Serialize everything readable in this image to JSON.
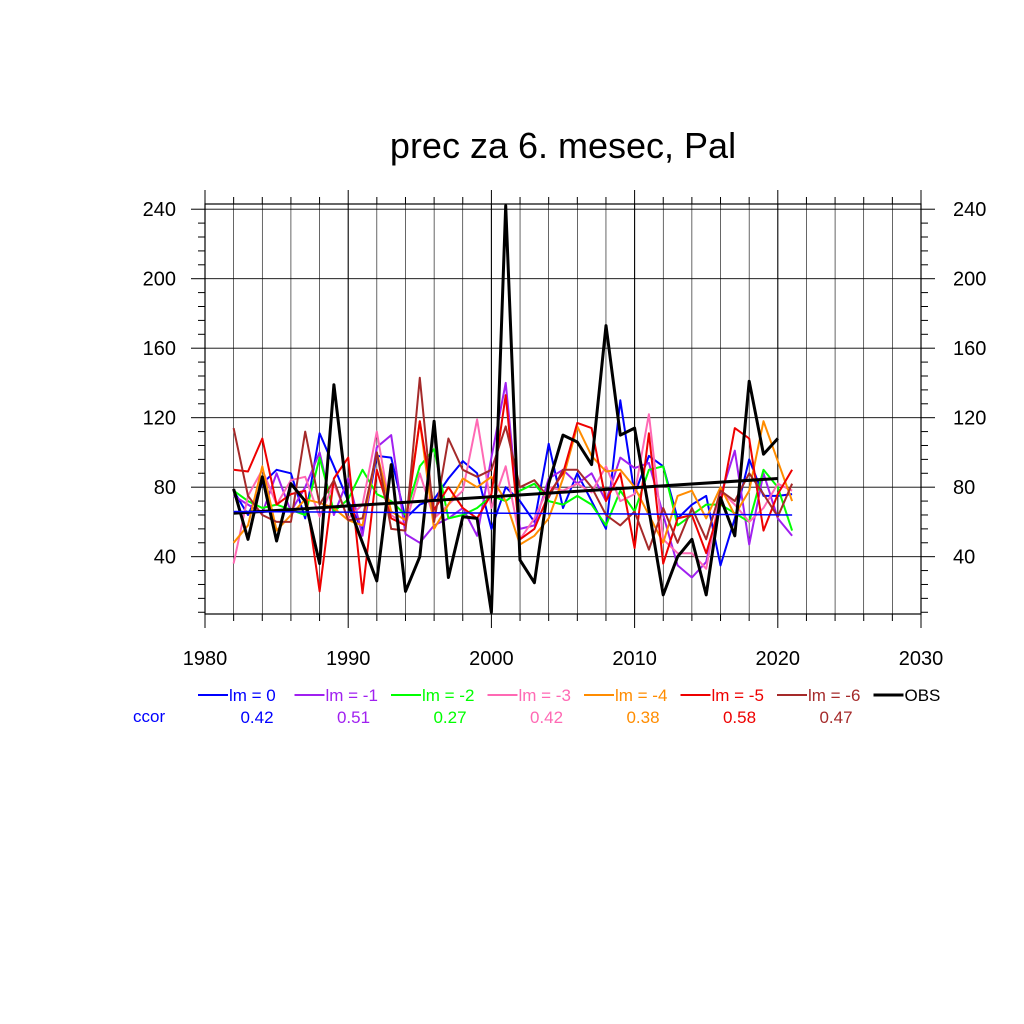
{
  "chart_data": {
    "type": "line",
    "title": "prec za 6. mesec, Pal",
    "xlabel": "",
    "ylabel": "",
    "xlim": [
      1980,
      2030
    ],
    "ylim": [
      7,
      243
    ],
    "x_ticks": [
      "1980",
      "1990",
      "2000",
      "2010",
      "2020",
      "2030"
    ],
    "y_ticks": [
      "40",
      "80",
      "120",
      "160",
      "200",
      "240"
    ],
    "ccor_label": "ccor",
    "x": [
      1982,
      1983,
      1984,
      1985,
      1986,
      1987,
      1988,
      1989,
      1990,
      1991,
      1992,
      1993,
      1994,
      1995,
      1996,
      1997,
      1998,
      1999,
      2000,
      2001,
      2002,
      2003,
      2004,
      2005,
      2006,
      2007,
      2008,
      2009,
      2010,
      2011,
      2012,
      2013,
      2014,
      2015,
      2016,
      2017,
      2018,
      2019,
      2020,
      2021
    ],
    "series": [
      {
        "name": "lm = 0",
        "color": "#0000ff",
        "ccor": "0.42",
        "width": 2,
        "values": [
          78,
          64,
          82,
          90,
          88,
          62,
          111,
          92,
          72,
          55,
          98,
          97,
          62,
          70,
          73,
          85,
          95,
          88,
          56,
          80,
          72,
          60,
          105,
          68,
          88,
          72,
          56,
          130,
          76,
          98,
          92,
          62,
          70,
          75,
          35,
          62,
          96,
          75,
          75,
          76
        ]
      },
      {
        "name": "lm = -1",
        "color": "#a020f0",
        "ccor": "0.51",
        "width": 2,
        "values": [
          75,
          70,
          65,
          88,
          66,
          80,
          100,
          64,
          85,
          52,
          103,
          110,
          53,
          48,
          58,
          62,
          68,
          52,
          97,
          140,
          56,
          58,
          85,
          90,
          82,
          88,
          72,
          97,
          91,
          94,
          64,
          35,
          28,
          37,
          75,
          101,
          47,
          88,
          62,
          52
        ]
      },
      {
        "name": "lm = -2",
        "color": "#00ff00",
        "ccor": "0.27",
        "width": 2,
        "values": [
          78,
          72,
          68,
          70,
          67,
          64,
          97,
          66,
          73,
          90,
          76,
          72,
          64,
          92,
          102,
          62,
          64,
          68,
          75,
          72,
          78,
          82,
          72,
          70,
          75,
          70,
          58,
          78,
          66,
          90,
          92,
          58,
          64,
          70,
          70,
          65,
          60,
          90,
          80,
          55
        ]
      },
      {
        "name": "lm = -3",
        "color": "#ff69b4",
        "ccor": "0.42",
        "width": 2,
        "values": [
          36,
          75,
          90,
          70,
          84,
          86,
          63,
          82,
          62,
          70,
          112,
          64,
          58,
          88,
          62,
          70,
          78,
          119,
          68,
          92,
          50,
          62,
          80,
          78,
          82,
          77,
          92,
          72,
          76,
          122,
          50,
          42,
          42,
          33,
          78,
          70,
          60,
          68,
          82,
          78
        ]
      },
      {
        "name": "lm = -4",
        "color": "#ff8c00",
        "ccor": "0.38",
        "width": 2,
        "values": [
          48,
          58,
          92,
          55,
          64,
          73,
          71,
          68,
          61,
          58,
          100,
          66,
          61,
          118,
          56,
          70,
          85,
          80,
          86,
          72,
          47,
          52,
          62,
          85,
          115,
          98,
          89,
          90,
          80,
          64,
          48,
          75,
          78,
          62,
          80,
          64,
          78,
          118,
          95,
          72
        ]
      },
      {
        "name": "lm = -5",
        "color": "#ee0000",
        "ccor": "0.58",
        "width": 2,
        "values": [
          90,
          89,
          108,
          70,
          76,
          78,
          20,
          85,
          97,
          19,
          90,
          62,
          58,
          118,
          67,
          80,
          68,
          62,
          76,
          133,
          50,
          56,
          76,
          88,
          117,
          114,
          72,
          88,
          45,
          111,
          36,
          62,
          64,
          42,
          70,
          114,
          108,
          55,
          76,
          90
        ]
      },
      {
        "name": "lm = -6",
        "color": "#a52a2a",
        "ccor": "0.47",
        "width": 2,
        "values": [
          114,
          75,
          64,
          60,
          60,
          112,
          70,
          84,
          61,
          62,
          100,
          56,
          55,
          143,
          60,
          108,
          90,
          86,
          90,
          115,
          80,
          84,
          74,
          90,
          90,
          80,
          64,
          58,
          66,
          44,
          68,
          48,
          68,
          50,
          78,
          72,
          88,
          76,
          63,
          82
        ]
      },
      {
        "name": "OBS",
        "color": "#000000",
        "ccor": "",
        "width": 3,
        "values": [
          79,
          50,
          86,
          49,
          82,
          72,
          36,
          139,
          70,
          48,
          26,
          93,
          20,
          40,
          118,
          28,
          63,
          62,
          8,
          242,
          38,
          25,
          82,
          110,
          106,
          93,
          173,
          110,
          114,
          67,
          18,
          40,
          50,
          18,
          74,
          52,
          141,
          99,
          108,
          null
        ]
      }
    ],
    "trend_lines": [
      {
        "name": "OBS trend",
        "color": "#000000",
        "width": 3,
        "x": [
          1982,
          2020
        ],
        "y": [
          65,
          85
        ]
      },
      {
        "name": "lm = 0 trend",
        "color": "#0000ff",
        "width": 1.5,
        "x": [
          1982,
          2021
        ],
        "y": [
          66,
          64
        ]
      }
    ]
  }
}
